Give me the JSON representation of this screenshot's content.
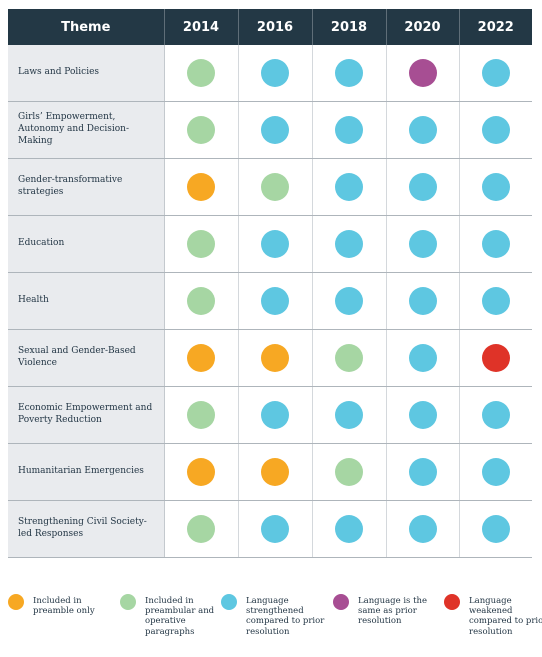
{
  "table": {
    "header": [
      "Theme",
      "2014",
      "2016",
      "2018",
      "2020",
      "2022"
    ],
    "rows": [
      {
        "theme": "Laws and Policies",
        "cells": [
          "operative",
          "strengthened",
          "strengthened",
          "same",
          "strengthened"
        ]
      },
      {
        "theme": "Girls’ Empowerment, Autonomy and Decision-Making",
        "cells": [
          "operative",
          "strengthened",
          "strengthened",
          "strengthened",
          "strengthened"
        ]
      },
      {
        "theme": "Gender-transformative strategies",
        "cells": [
          "preamble",
          "operative",
          "strengthened",
          "strengthened",
          "strengthened"
        ]
      },
      {
        "theme": "Education",
        "cells": [
          "operative",
          "strengthened",
          "strengthened",
          "strengthened",
          "strengthened"
        ]
      },
      {
        "theme": "Health",
        "cells": [
          "operative",
          "strengthened",
          "strengthened",
          "strengthened",
          "strengthened"
        ]
      },
      {
        "theme": "Sexual and Gender-Based Violence",
        "cells": [
          "preamble",
          "preamble",
          "operative",
          "strengthened",
          "weakened"
        ]
      },
      {
        "theme": "Economic Empowerment and Poverty Reduction",
        "cells": [
          "operative",
          "strengthened",
          "strengthened",
          "strengthened",
          "strengthened"
        ]
      },
      {
        "theme": "Humanitarian Emergencies",
        "cells": [
          "preamble",
          "preamble",
          "operative",
          "strengthened",
          "strengthened"
        ]
      },
      {
        "theme": "Strengthening Civil Society-led Responses",
        "cells": [
          "operative",
          "strengthened",
          "strengthened",
          "strengthened",
          "strengthened"
        ]
      }
    ]
  },
  "legend": [
    {
      "key": "preamble",
      "label": "Included in preamble only"
    },
    {
      "key": "operative",
      "label": "Included in preambular and operative paragraphs"
    },
    {
      "key": "strengthened",
      "label": "Language strengthened compared to prior resolution"
    },
    {
      "key": "same",
      "label": "Language is the same as prior resolution"
    },
    {
      "key": "weakened",
      "label": "Language weakened compared to prior resolution"
    }
  ],
  "colors": {
    "header_bg": "#233845",
    "theme_bg": "#e9ebee",
    "preamble": "#f7a823",
    "operative": "#a6d6a3",
    "strengthened": "#5ec7e1",
    "same": "#a74e93",
    "weakened": "#df3328"
  }
}
